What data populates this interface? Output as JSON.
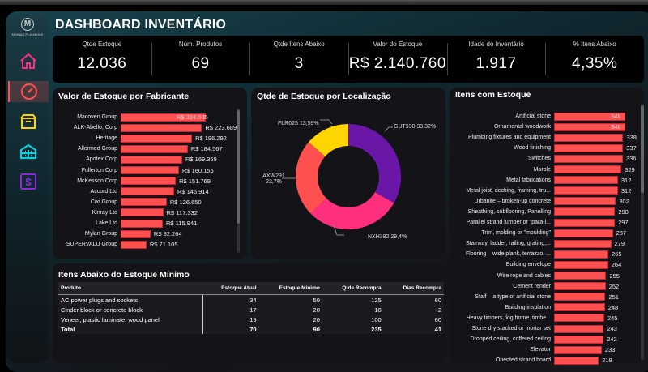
{
  "title": "DASHBOARD INVENTÁRIO",
  "logo_text": "MINHAS PLANILHAS",
  "nav": [
    {
      "icon": "home-icon",
      "color": "#ff2e7e"
    },
    {
      "icon": "gauge-icon",
      "color": "#ff5050",
      "active": true
    },
    {
      "icon": "box-icon",
      "color": "#ffd500"
    },
    {
      "icon": "warehouse-icon",
      "color": "#00d4e0"
    },
    {
      "icon": "dollar-icon",
      "color": "#8a2be2"
    }
  ],
  "kpis": [
    {
      "label": "Qtde Estoque",
      "value": "12.036"
    },
    {
      "label": "Núm. Produtos",
      "value": "69"
    },
    {
      "label": "Qtde Itens Abaixo",
      "value": "3"
    },
    {
      "label": "Valor do Estoque",
      "value": "R$ 2.140.760"
    },
    {
      "label": "Idade do Inventário",
      "value": "1.917"
    },
    {
      "label": "% Itens Abaixo",
      "value": "4,35%"
    }
  ],
  "chart_data": [
    {
      "type": "bar",
      "title": "Valor de Estoque por Fabricante",
      "categories": [
        "Macoven Group",
        "ALK-Abello, Corp",
        "Heritage",
        "Allermed Group",
        "Apotex Corp",
        "Fullerton Corp",
        "McKesson Corp",
        "Accord Ltd",
        "Cixi Group",
        "Kinray Ltd",
        "Lake Ltd",
        "Mylan Group",
        "SUPERVALU Group"
      ],
      "values": [
        234005,
        223689,
        196292,
        184567,
        169369,
        160155,
        151769,
        146914,
        126650,
        117332,
        115941,
        82264,
        71105
      ],
      "labels": [
        "R$ 234.005",
        "R$ 223.689",
        "R$ 196.292",
        "R$ 184.567",
        "R$ 169.369",
        "R$ 160.155",
        "R$ 151.769",
        "R$ 146.914",
        "R$ 126.650",
        "R$ 117.332",
        "R$ 115.941",
        "R$ 82.264",
        "R$ 71.105"
      ],
      "color": "#ff5050"
    },
    {
      "type": "pie",
      "title": "Qtde de Estoque por Localização",
      "categories": [
        "GUT930",
        "NXH382",
        "AXW291",
        "FLR025"
      ],
      "values": [
        33.32,
        29.4,
        23.7,
        13.59
      ],
      "labels": [
        "GUT930 33,32%",
        "NXH382 29,4%",
        "AXW291 23,7%",
        "FLR025 13,59%"
      ],
      "colors": [
        "#6a16a6",
        "#ff2e7e",
        "#ff5050",
        "#ffd500"
      ]
    },
    {
      "type": "bar",
      "title": "Itens com Estoque",
      "categories": [
        "Artificial stone",
        "Ornamental woodwork",
        "Plumbing fixtures and equipment",
        "Wood finishing",
        "Switches",
        "Marble",
        "Metal fabrications",
        "Metal joist, decking, framing, tru...",
        "Urbanite – broken-up concrete",
        "Sheathing, subflooring, Panelling",
        "Parallel strand lumber or \"para-l...",
        "Trim, molding or \"moulding\"",
        "Stairway, ladder, railing, grating,...",
        "Flooring – wide plank, terrazzo, ...",
        "Building envelope",
        "Wire rope and cables",
        "Cement render",
        "Staff – a type of artificial stone",
        "Building insulation",
        "Heavy timbers, log home, timbe...",
        "Stone dry stacked or mortar set",
        "Dropped ceiling, coffered ceiling",
        "Elevator",
        "Oriented strand board"
      ],
      "values": [
        348,
        348,
        338,
        337,
        336,
        329,
        312,
        312,
        302,
        298,
        297,
        287,
        279,
        265,
        264,
        255,
        252,
        251,
        248,
        245,
        243,
        242,
        233,
        218
      ],
      "color": "#ff5050"
    }
  ],
  "table": {
    "title": "Itens Abaixo do Estoque Mínimo",
    "headers": [
      "Produto",
      "Estoque Atual",
      "Estoque Mínimo",
      "Qtde Recompra",
      "Dias Recompra"
    ],
    "rows": [
      [
        "AC power plugs and sockets",
        "34",
        "50",
        "125",
        "60"
      ],
      [
        "Cinder block or concrete block",
        "17",
        "20",
        "10",
        "2"
      ],
      [
        "Veneer, plastic laminate, wood panel",
        "19",
        "20",
        "100",
        "60"
      ]
    ],
    "total": [
      "Total",
      "70",
      "90",
      "235",
      "41"
    ]
  }
}
